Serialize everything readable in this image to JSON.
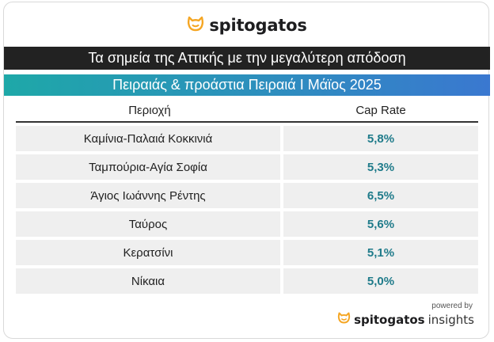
{
  "brand": {
    "name": "spitogatos",
    "logo_icon": "cat-head-icon",
    "logo_color": "#f5a623"
  },
  "title": "Τα σημεία της Αττικής με την μεγαλύτερη απόδοση",
  "subtitle": "Πειραιάς & προάστια Πειραιά Ι Μάϊος 2025",
  "table": {
    "headers": [
      "Περιοχή",
      "Cap Rate"
    ],
    "rows": [
      {
        "area": "Καμίνια-Παλαιά Κοκκινιά",
        "cap_rate": "5,8%"
      },
      {
        "area": "Ταμπούρια-Αγία Σοφία",
        "cap_rate": "5,3%"
      },
      {
        "area": "Άγιος Ιωάννης Ρέντης",
        "cap_rate": "6,5%"
      },
      {
        "area": "Ταύρος",
        "cap_rate": "5,6%"
      },
      {
        "area": "Κερατσίνι",
        "cap_rate": "5,1%"
      },
      {
        "area": "Νίκαια",
        "cap_rate": "5,0%"
      }
    ]
  },
  "footer": {
    "powered_by": "powered by",
    "brand_name": "spitogatos",
    "brand_suffix": "insights"
  },
  "colors": {
    "accent": "#1f7b8a",
    "title_bg": "#222222",
    "subtitle_gradient": [
      "#1ea8a8",
      "#3a78d0"
    ]
  }
}
